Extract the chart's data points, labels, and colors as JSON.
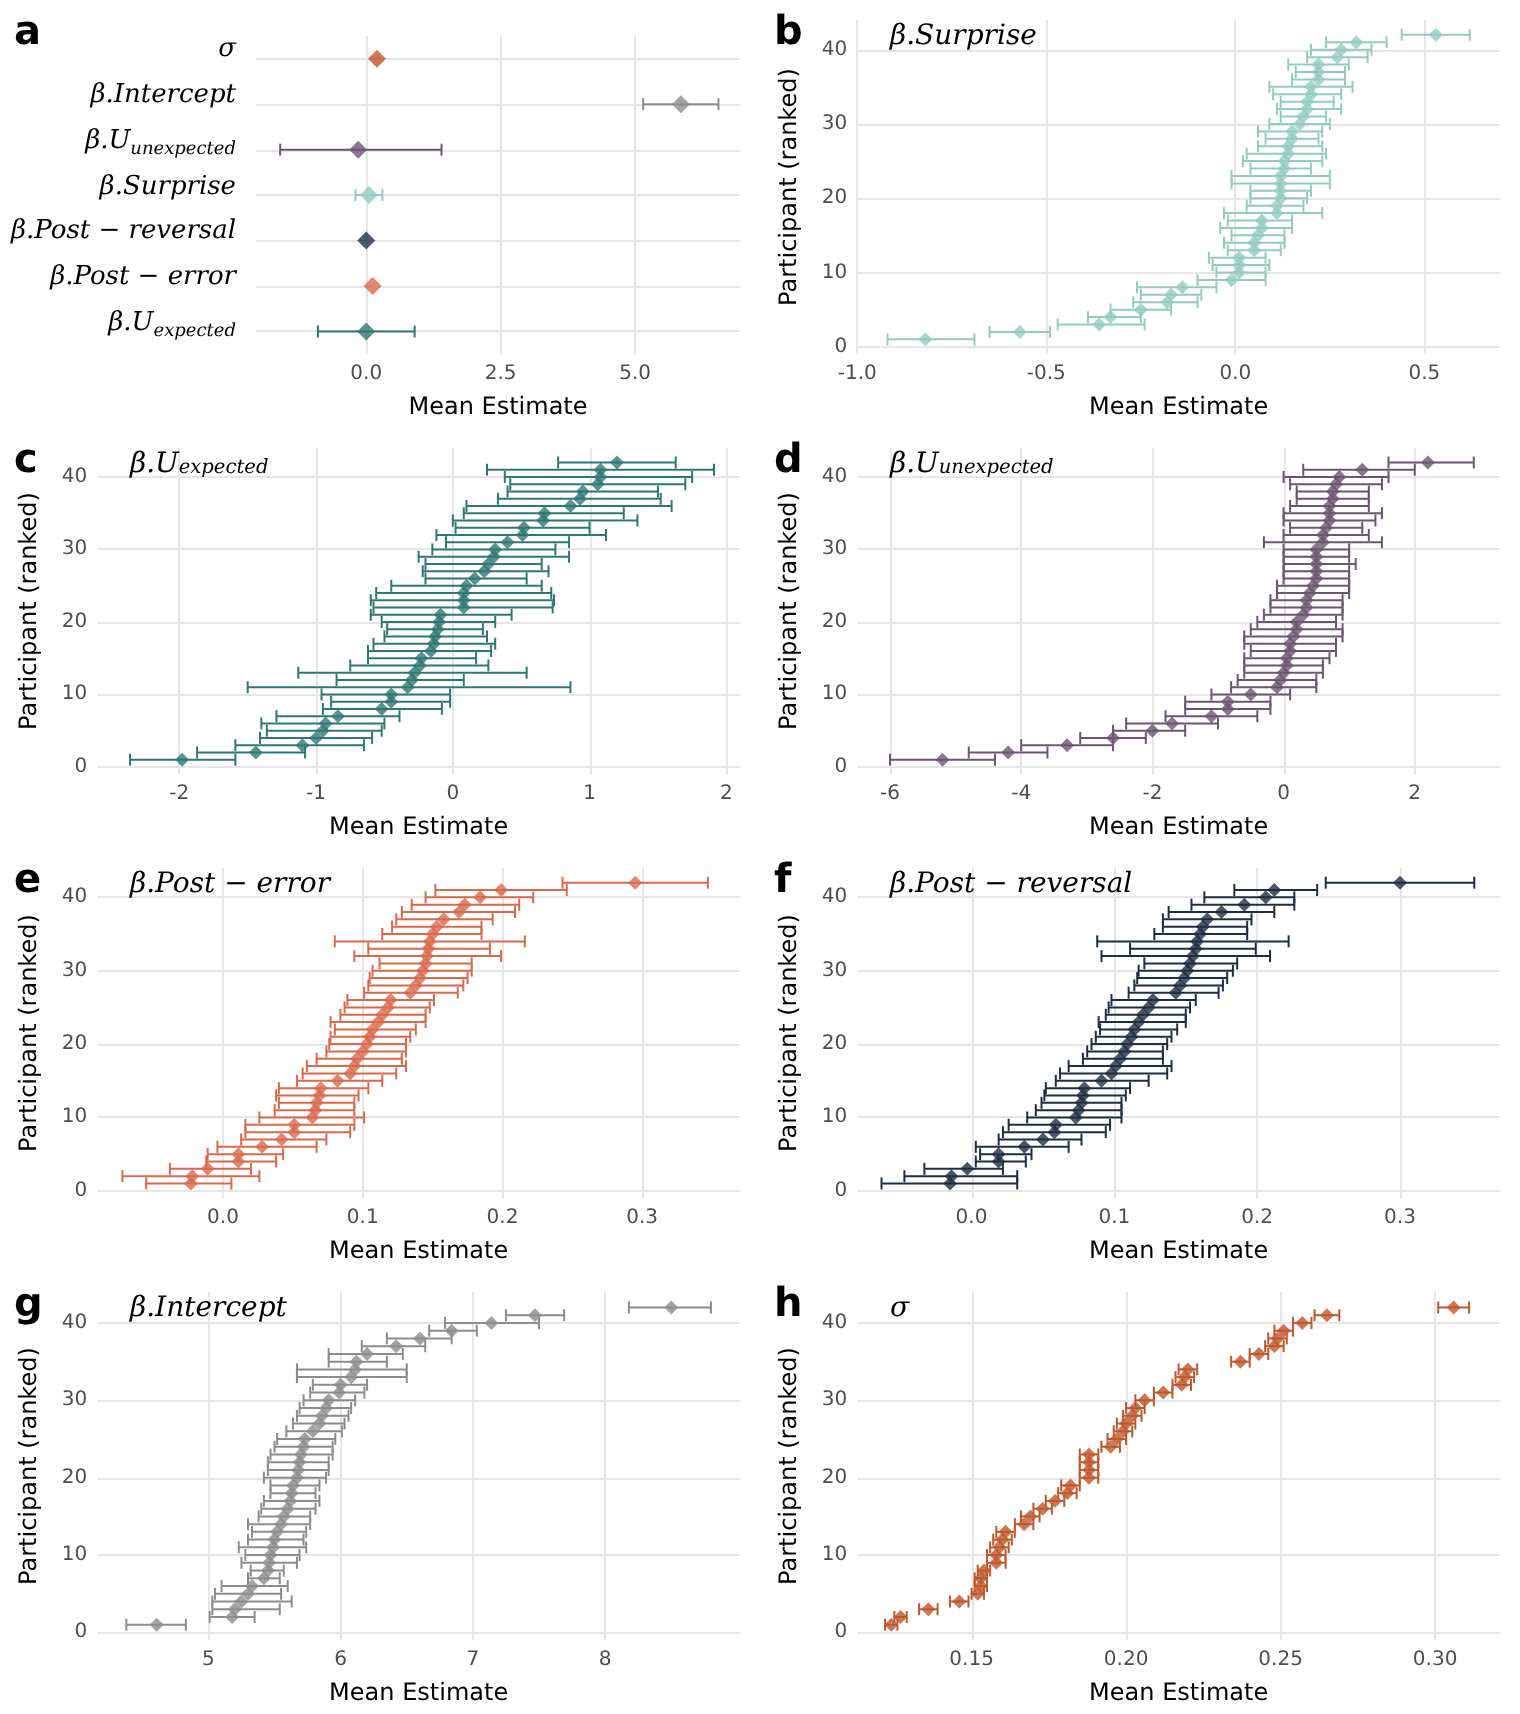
{
  "chart_data": [
    {
      "type": "scatter",
      "title": "a",
      "orientation": "horizontal",
      "xlabel": "Mean Estimate",
      "grid": true,
      "marker": "diamond",
      "categories": [
        "σ",
        "β.Intercept",
        "β.U$_{unexpected}$",
        "β.Surprise",
        "β.Post − reversal",
        "β.Post − error",
        "β.U$_{expected}$"
      ],
      "values": [
        0.2,
        5.85,
        -0.15,
        0.05,
        0.0,
        0.12,
        0.0
      ],
      "errors": [
        null,
        [
          5.15,
          6.55
        ],
        [
          -1.6,
          1.4
        ],
        [
          -0.2,
          0.3
        ],
        null,
        null,
        [
          -0.9,
          0.9
        ]
      ],
      "colors": [
        "#c0562b",
        "#8c8c8c",
        "#6b5570",
        "#93cbbf",
        "#1f2d44",
        "#d9694d",
        "#2f7774"
      ],
      "xlim": [
        -2.05,
        6.95
      ],
      "xticks": [
        {
          "value": 0,
          "label": "0.0"
        },
        {
          "value": 2.5,
          "label": "2.5"
        },
        {
          "value": 5,
          "label": "5.0"
        }
      ]
    },
    {
      "type": "scatter",
      "title": "b",
      "subtitle": "β.Surprise",
      "xlabel": "Mean Estimate",
      "ylabel": "Participant (ranked)",
      "grid": true,
      "marker": "diamond",
      "color": "#93cbbf",
      "x": [
        -0.82,
        -0.57,
        -0.36,
        -0.33,
        -0.25,
        -0.18,
        -0.17,
        -0.14,
        -0.01,
        0.01,
        0.01,
        0.01,
        0.05,
        0.05,
        0.06,
        0.07,
        0.07,
        0.11,
        0.11,
        0.12,
        0.12,
        0.12,
        0.12,
        0.13,
        0.13,
        0.14,
        0.14,
        0.15,
        0.15,
        0.17,
        0.18,
        0.19,
        0.19,
        0.2,
        0.2,
        0.22,
        0.22,
        0.22,
        0.27,
        0.28,
        0.32,
        0.53
      ],
      "values": [
        1,
        2,
        3,
        4,
        5,
        6,
        7,
        8,
        9,
        10,
        11,
        12,
        13,
        14,
        15,
        16,
        17,
        18,
        19,
        20,
        21,
        22,
        23,
        24,
        25,
        26,
        27,
        28,
        29,
        30,
        31,
        32,
        33,
        34,
        35,
        36,
        37,
        38,
        39,
        40,
        41,
        42
      ],
      "xerrors": [
        [
          -0.92,
          -0.69
        ],
        [
          -0.65,
          -0.49
        ],
        [
          -0.47,
          -0.24
        ],
        [
          -0.39,
          -0.25
        ],
        [
          -0.33,
          -0.17
        ],
        [
          -0.27,
          -0.1
        ],
        [
          -0.25,
          -0.09
        ],
        [
          -0.26,
          -0.05
        ],
        [
          -0.1,
          0.08
        ],
        [
          -0.05,
          0.08
        ],
        [
          -0.06,
          0.09
        ],
        [
          -0.07,
          0.08
        ],
        [
          -0.02,
          0.12
        ],
        [
          -0.03,
          0.13
        ],
        [
          -0.01,
          0.13
        ],
        [
          -0.04,
          0.15
        ],
        [
          -0.02,
          0.15
        ],
        [
          -0.03,
          0.23
        ],
        [
          0.03,
          0.18
        ],
        [
          0.04,
          0.19
        ],
        [
          0.04,
          0.2
        ],
        [
          -0.01,
          0.25
        ],
        [
          -0.01,
          0.25
        ],
        [
          0.04,
          0.2
        ],
        [
          0.02,
          0.23
        ],
        [
          0.03,
          0.24
        ],
        [
          0.06,
          0.23
        ],
        [
          0.08,
          0.22
        ],
        [
          0.06,
          0.23
        ],
        [
          0.09,
          0.25
        ],
        [
          0.12,
          0.24
        ],
        [
          0.11,
          0.28
        ],
        [
          0.12,
          0.26
        ],
        [
          0.1,
          0.28
        ],
        [
          0.09,
          0.31
        ],
        [
          0.15,
          0.29
        ],
        [
          0.16,
          0.29
        ],
        [
          0.14,
          0.3
        ],
        [
          0.19,
          0.35
        ],
        [
          0.2,
          0.36
        ],
        [
          0.24,
          0.4
        ],
        [
          0.44,
          0.62
        ]
      ],
      "xlim": [
        -1.0,
        0.7
      ],
      "xticks": [
        {
          "value": -1,
          "label": "-1.0"
        },
        {
          "value": -0.5,
          "label": "-0.5"
        },
        {
          "value": 0,
          "label": "0.0"
        },
        {
          "value": 0.5,
          "label": "0.5"
        }
      ],
      "ylim": [
        -1,
        44
      ],
      "yticks": [
        0,
        10,
        20,
        30,
        40
      ]
    },
    {
      "type": "scatter",
      "title": "c",
      "subtitle": "β.U$_{expected}$",
      "xlabel": "Mean Estimate",
      "ylabel": "Participant (ranked)",
      "grid": true,
      "marker": "diamond",
      "color": "#2f7774",
      "x": [
        -1.98,
        -1.44,
        -1.1,
        -1.0,
        -0.95,
        -0.93,
        -0.84,
        -0.52,
        -0.45,
        -0.45,
        -0.33,
        -0.3,
        -0.28,
        -0.24,
        -0.23,
        -0.16,
        -0.14,
        -0.13,
        -0.11,
        -0.1,
        -0.09,
        0.08,
        0.08,
        0.08,
        0.1,
        0.16,
        0.23,
        0.26,
        0.3,
        0.31,
        0.4,
        0.51,
        0.52,
        0.66,
        0.67,
        0.86,
        0.93,
        0.95,
        1.06,
        1.08,
        1.08,
        1.2
      ],
      "values": [
        1,
        2,
        3,
        4,
        5,
        6,
        7,
        8,
        9,
        10,
        11,
        12,
        13,
        14,
        15,
        16,
        17,
        18,
        19,
        20,
        21,
        22,
        23,
        24,
        25,
        26,
        27,
        28,
        29,
        30,
        31,
        32,
        33,
        34,
        35,
        36,
        37,
        38,
        39,
        40,
        41,
        42
      ],
      "xerrors": [
        [
          -2.36,
          -1.59
        ],
        [
          -1.87,
          -1.08
        ],
        [
          -1.59,
          -0.65
        ],
        [
          -1.41,
          -0.59
        ],
        [
          -1.36,
          -0.52
        ],
        [
          -1.4,
          -0.5
        ],
        [
          -1.29,
          -0.39
        ],
        [
          -0.95,
          -0.08
        ],
        [
          -0.89,
          -0.02
        ],
        [
          -0.96,
          -0.02
        ],
        [
          -1.5,
          0.86
        ],
        [
          -0.85,
          0.08
        ],
        [
          -1.13,
          0.54
        ],
        [
          -0.75,
          0.26
        ],
        [
          -0.62,
          0.17
        ],
        [
          -0.62,
          0.28
        ],
        [
          -0.58,
          0.31
        ],
        [
          -0.5,
          0.25
        ],
        [
          -0.48,
          0.22
        ],
        [
          -0.52,
          0.31
        ],
        [
          -0.6,
          0.43
        ],
        [
          -0.58,
          0.73
        ],
        [
          -0.6,
          0.74
        ],
        [
          -0.56,
          0.72
        ],
        [
          -0.45,
          0.65
        ],
        [
          -0.2,
          0.54
        ],
        [
          -0.22,
          0.7
        ],
        [
          -0.2,
          0.65
        ],
        [
          -0.25,
          0.85
        ],
        [
          -0.15,
          0.75
        ],
        [
          -0.05,
          0.85
        ],
        [
          -0.12,
          1.12
        ],
        [
          0.02,
          1.0
        ],
        [
          0.0,
          1.35
        ],
        [
          0.08,
          1.25
        ],
        [
          0.1,
          1.6
        ],
        [
          0.33,
          1.52
        ],
        [
          0.4,
          1.5
        ],
        [
          0.42,
          1.7
        ],
        [
          0.38,
          1.75
        ],
        [
          0.25,
          1.91
        ],
        [
          0.77,
          1.63
        ]
      ],
      "xlim": [
        -2.6,
        2.1
      ],
      "xticks": [
        -2,
        -1,
        0,
        1,
        2
      ],
      "ylim": [
        -1,
        44
      ],
      "yticks": [
        0,
        10,
        20,
        30,
        40
      ]
    },
    {
      "type": "scatter",
      "title": "d",
      "subtitle": "β.U$_{unexpected}$",
      "xlabel": "Mean Estimate",
      "ylabel": "Participant (ranked)",
      "grid": true,
      "marker": "diamond",
      "color": "#6b5570",
      "x": [
        -5.2,
        -4.2,
        -3.3,
        -2.6,
        -2.0,
        -1.7,
        -1.1,
        -0.85,
        -0.85,
        -0.5,
        -0.1,
        -0.05,
        0.0,
        0.05,
        0.05,
        0.1,
        0.1,
        0.15,
        0.2,
        0.2,
        0.3,
        0.35,
        0.35,
        0.4,
        0.45,
        0.5,
        0.5,
        0.5,
        0.5,
        0.5,
        0.6,
        0.6,
        0.65,
        0.7,
        0.7,
        0.7,
        0.75,
        0.75,
        0.8,
        0.85,
        1.2,
        2.2
      ],
      "values": [
        1,
        2,
        3,
        4,
        5,
        6,
        7,
        8,
        9,
        10,
        11,
        12,
        13,
        14,
        15,
        16,
        17,
        18,
        19,
        20,
        21,
        22,
        23,
        24,
        25,
        26,
        27,
        28,
        29,
        30,
        31,
        32,
        33,
        34,
        35,
        36,
        37,
        38,
        39,
        40,
        41,
        42
      ],
      "xerrors": [
        [
          -6.0,
          -4.4
        ],
        [
          -4.8,
          -3.6
        ],
        [
          -4.0,
          -2.6
        ],
        [
          -3.1,
          -2.1
        ],
        [
          -2.6,
          -1.5
        ],
        [
          -2.4,
          -1.0
        ],
        [
          -1.8,
          -0.4
        ],
        [
          -1.5,
          -0.2
        ],
        [
          -1.5,
          -0.2
        ],
        [
          -1.1,
          0.1
        ],
        [
          -0.8,
          0.5
        ],
        [
          -0.7,
          0.5
        ],
        [
          -0.6,
          0.6
        ],
        [
          -0.6,
          0.6
        ],
        [
          -0.6,
          0.7
        ],
        [
          -0.5,
          0.8
        ],
        [
          -0.6,
          0.8
        ],
        [
          -0.6,
          0.9
        ],
        [
          -0.5,
          0.9
        ],
        [
          -0.4,
          0.8
        ],
        [
          -0.3,
          0.9
        ],
        [
          -0.2,
          0.9
        ],
        [
          -0.2,
          0.9
        ],
        [
          -0.1,
          1.0
        ],
        [
          -0.1,
          1.0
        ],
        [
          0.0,
          1.0
        ],
        [
          0.0,
          1.0
        ],
        [
          0.0,
          1.1
        ],
        [
          0.0,
          1.0
        ],
        [
          0.0,
          1.0
        ],
        [
          -0.3,
          1.5
        ],
        [
          0.0,
          1.3
        ],
        [
          0.1,
          1.2
        ],
        [
          0.0,
          1.4
        ],
        [
          0.0,
          1.5
        ],
        [
          0.1,
          1.3
        ],
        [
          0.2,
          1.3
        ],
        [
          0.2,
          1.3
        ],
        [
          0.1,
          1.5
        ],
        [
          0.0,
          1.6
        ],
        [
          0.3,
          2.0
        ],
        [
          1.6,
          2.9
        ]
      ],
      "xlim": [
        -6.5,
        3.3
      ],
      "xticks": [
        -6,
        -4,
        -2,
        0,
        2
      ],
      "ylim": [
        -1,
        44
      ],
      "yticks": [
        0,
        10,
        20,
        30,
        40
      ]
    },
    {
      "type": "scatter",
      "title": "e",
      "subtitle": "β.Post − error",
      "xlabel": "Mean Estimate",
      "ylabel": "Participant (ranked)",
      "grid": true,
      "marker": "diamond",
      "color": "#d9694d",
      "x": [
        -0.023,
        -0.022,
        -0.011,
        0.011,
        0.011,
        0.028,
        0.042,
        0.051,
        0.051,
        0.064,
        0.066,
        0.067,
        0.069,
        0.07,
        0.082,
        0.091,
        0.094,
        0.096,
        0.1,
        0.103,
        0.105,
        0.107,
        0.111,
        0.114,
        0.118,
        0.12,
        0.134,
        0.138,
        0.141,
        0.143,
        0.145,
        0.146,
        0.147,
        0.148,
        0.15,
        0.153,
        0.158,
        0.169,
        0.173,
        0.184,
        0.199,
        0.295
      ],
      "values": [
        1,
        2,
        3,
        4,
        5,
        6,
        7,
        8,
        9,
        10,
        11,
        12,
        13,
        14,
        15,
        16,
        17,
        18,
        19,
        20,
        21,
        22,
        23,
        24,
        25,
        26,
        27,
        28,
        29,
        30,
        31,
        32,
        33,
        34,
        35,
        36,
        37,
        38,
        39,
        40,
        41,
        42
      ],
      "xerrors": [
        [
          -0.055,
          0.006
        ],
        [
          -0.072,
          0.026
        ],
        [
          -0.038,
          0.02
        ],
        [
          -0.012,
          0.038
        ],
        [
          -0.011,
          0.043
        ],
        [
          -0.004,
          0.067
        ],
        [
          0.013,
          0.074
        ],
        [
          0.016,
          0.091
        ],
        [
          0.016,
          0.094
        ],
        [
          0.026,
          0.101
        ],
        [
          0.037,
          0.094
        ],
        [
          0.04,
          0.094
        ],
        [
          0.038,
          0.097
        ],
        [
          0.04,
          0.104
        ],
        [
          0.053,
          0.114
        ],
        [
          0.057,
          0.124
        ],
        [
          0.06,
          0.131
        ],
        [
          0.067,
          0.128
        ],
        [
          0.074,
          0.131
        ],
        [
          0.076,
          0.131
        ],
        [
          0.077,
          0.134
        ],
        [
          0.08,
          0.138
        ],
        [
          0.077,
          0.145
        ],
        [
          0.084,
          0.145
        ],
        [
          0.087,
          0.148
        ],
        [
          0.089,
          0.151
        ],
        [
          0.101,
          0.168
        ],
        [
          0.104,
          0.172
        ],
        [
          0.105,
          0.175
        ],
        [
          0.107,
          0.178
        ],
        [
          0.112,
          0.178
        ],
        [
          0.094,
          0.199
        ],
        [
          0.104,
          0.191
        ],
        [
          0.08,
          0.216
        ],
        [
          0.114,
          0.185
        ],
        [
          0.121,
          0.185
        ],
        [
          0.124,
          0.193
        ],
        [
          0.128,
          0.209
        ],
        [
          0.135,
          0.212
        ],
        [
          0.145,
          0.222
        ],
        [
          0.152,
          0.246
        ],
        [
          0.243,
          0.347
        ]
      ],
      "xlim": [
        -0.09,
        0.37
      ],
      "xticks": [
        {
          "value": 0,
          "label": "0.0"
        },
        {
          "value": 0.1,
          "label": "0.1"
        },
        {
          "value": 0.2,
          "label": "0.2"
        },
        {
          "value": 0.3,
          "label": "0.3"
        }
      ],
      "ylim": [
        -1,
        44
      ],
      "yticks": [
        0,
        10,
        20,
        30,
        40
      ]
    },
    {
      "type": "scatter",
      "title": "f",
      "subtitle": "β.Post − reversal",
      "xlabel": "Mean Estimate",
      "ylabel": "Participant (ranked)",
      "grid": true,
      "marker": "diamond",
      "color": "#1f2d44",
      "x": [
        -0.015,
        -0.014,
        -0.003,
        0.019,
        0.019,
        0.037,
        0.05,
        0.058,
        0.059,
        0.073,
        0.075,
        0.077,
        0.078,
        0.079,
        0.091,
        0.098,
        0.101,
        0.104,
        0.107,
        0.109,
        0.112,
        0.114,
        0.117,
        0.12,
        0.124,
        0.127,
        0.143,
        0.146,
        0.149,
        0.151,
        0.153,
        0.155,
        0.157,
        0.158,
        0.16,
        0.162,
        0.165,
        0.175,
        0.191,
        0.206,
        0.212,
        0.3
      ],
      "values": [
        1,
        2,
        3,
        4,
        5,
        6,
        7,
        8,
        9,
        10,
        11,
        12,
        13,
        14,
        15,
        16,
        17,
        18,
        19,
        20,
        21,
        22,
        23,
        24,
        25,
        26,
        27,
        28,
        29,
        30,
        31,
        32,
        33,
        34,
        35,
        36,
        37,
        38,
        39,
        40,
        41,
        42
      ],
      "xerrors": [
        [
          -0.063,
          0.032
        ],
        [
          -0.047,
          0.032
        ],
        [
          -0.033,
          0.022
        ],
        [
          0.003,
          0.038
        ],
        [
          0.006,
          0.042
        ],
        [
          0.003,
          0.068
        ],
        [
          0.019,
          0.077
        ],
        [
          0.022,
          0.094
        ],
        [
          0.026,
          0.097
        ],
        [
          0.039,
          0.105
        ],
        [
          0.045,
          0.105
        ],
        [
          0.049,
          0.105
        ],
        [
          0.051,
          0.108
        ],
        [
          0.052,
          0.111
        ],
        [
          0.059,
          0.124
        ],
        [
          0.062,
          0.137
        ],
        [
          0.068,
          0.14
        ],
        [
          0.078,
          0.134
        ],
        [
          0.081,
          0.134
        ],
        [
          0.084,
          0.137
        ],
        [
          0.087,
          0.14
        ],
        [
          0.09,
          0.144
        ],
        [
          0.089,
          0.15
        ],
        [
          0.094,
          0.15
        ],
        [
          0.096,
          0.153
        ],
        [
          0.098,
          0.157
        ],
        [
          0.11,
          0.173
        ],
        [
          0.114,
          0.176
        ],
        [
          0.116,
          0.179
        ],
        [
          0.117,
          0.183
        ],
        [
          0.121,
          0.186
        ],
        [
          0.091,
          0.209
        ],
        [
          0.111,
          0.199
        ],
        [
          0.088,
          0.222
        ],
        [
          0.128,
          0.193
        ],
        [
          0.134,
          0.193
        ],
        [
          0.134,
          0.196
        ],
        [
          0.138,
          0.212
        ],
        [
          0.154,
          0.226
        ],
        [
          0.163,
          0.226
        ],
        [
          0.184,
          0.242
        ],
        [
          0.248,
          0.352
        ]
      ],
      "xlim": [
        -0.08,
        0.37
      ],
      "xticks": [
        {
          "value": 0,
          "label": "0.0"
        },
        {
          "value": 0.1,
          "label": "0.1"
        },
        {
          "value": 0.2,
          "label": "0.2"
        },
        {
          "value": 0.3,
          "label": "0.3"
        }
      ],
      "ylim": [
        -1,
        44
      ],
      "yticks": [
        0,
        10,
        20,
        30,
        40
      ]
    },
    {
      "type": "scatter",
      "title": "g",
      "subtitle": "β.Intercept",
      "xlabel": "Mean Estimate",
      "ylabel": "Participant (ranked)",
      "grid": true,
      "marker": "diamond",
      "color": "#8c8c8c",
      "x": [
        4.61,
        5.18,
        5.2,
        5.25,
        5.3,
        5.33,
        5.42,
        5.45,
        5.46,
        5.47,
        5.49,
        5.5,
        5.52,
        5.55,
        5.57,
        5.6,
        5.62,
        5.63,
        5.64,
        5.67,
        5.68,
        5.69,
        5.7,
        5.72,
        5.73,
        5.79,
        5.84,
        5.86,
        5.89,
        5.91,
        5.99,
        6.0,
        6.08,
        6.11,
        6.12,
        6.2,
        6.42,
        6.6,
        6.84,
        7.14,
        7.47,
        8.5
      ],
      "values": [
        1,
        2,
        3,
        4,
        5,
        6,
        7,
        8,
        9,
        10,
        11,
        12,
        13,
        14,
        15,
        16,
        17,
        18,
        19,
        20,
        21,
        22,
        23,
        24,
        25,
        26,
        27,
        28,
        29,
        30,
        31,
        32,
        33,
        34,
        35,
        36,
        37,
        38,
        39,
        40,
        41,
        42
      ],
      "xerrors": [
        [
          4.38,
          4.83
        ],
        [
          5.01,
          5.35
        ],
        [
          5.03,
          5.54
        ],
        [
          5.03,
          5.63
        ],
        [
          5.05,
          5.55
        ],
        [
          5.1,
          5.6
        ],
        [
          5.3,
          5.54
        ],
        [
          5.32,
          5.57
        ],
        [
          5.25,
          5.67
        ],
        [
          5.28,
          5.69
        ],
        [
          5.23,
          5.74
        ],
        [
          5.3,
          5.72
        ],
        [
          5.33,
          5.74
        ],
        [
          5.3,
          5.77
        ],
        [
          5.38,
          5.77
        ],
        [
          5.4,
          5.81
        ],
        [
          5.42,
          5.84
        ],
        [
          5.47,
          5.81
        ],
        [
          5.47,
          5.84
        ],
        [
          5.42,
          5.89
        ],
        [
          5.45,
          5.91
        ],
        [
          5.45,
          5.91
        ],
        [
          5.47,
          5.94
        ],
        [
          5.5,
          5.94
        ],
        [
          5.52,
          5.96
        ],
        [
          5.59,
          6.01
        ],
        [
          5.64,
          6.03
        ],
        [
          5.67,
          6.06
        ],
        [
          5.69,
          6.08
        ],
        [
          5.72,
          6.11
        ],
        [
          5.77,
          6.18
        ],
        [
          5.79,
          6.2
        ],
        [
          5.67,
          6.5
        ],
        [
          5.67,
          6.5
        ],
        [
          5.91,
          6.35
        ],
        [
          5.91,
          6.47
        ],
        [
          6.16,
          6.64
        ],
        [
          6.35,
          6.84
        ],
        [
          6.67,
          7.03
        ],
        [
          6.79,
          7.5
        ],
        [
          7.25,
          7.69
        ],
        [
          8.18,
          8.8
        ]
      ],
      "xlim": [
        4.16,
        9.02
      ],
      "xticks": [
        5,
        6,
        7,
        8
      ],
      "ylim": [
        -1,
        44
      ],
      "yticks": [
        0,
        10,
        20,
        30,
        40
      ]
    },
    {
      "type": "scatter",
      "title": "h",
      "subtitle": "σ",
      "xlabel": "Mean Estimate",
      "ylabel": "Participant (ranked)",
      "grid": true,
      "marker": "diamond",
      "color": "#c0562b",
      "x": [
        0.124,
        0.127,
        0.136,
        0.146,
        0.152,
        0.153,
        0.153,
        0.154,
        0.158,
        0.158,
        0.159,
        0.16,
        0.161,
        0.167,
        0.169,
        0.173,
        0.177,
        0.181,
        0.182,
        0.188,
        0.188,
        0.188,
        0.188,
        0.195,
        0.197,
        0.199,
        0.2,
        0.202,
        0.203,
        0.206,
        0.212,
        0.218,
        0.219,
        0.22,
        0.237,
        0.243,
        0.248,
        0.249,
        0.251,
        0.257,
        0.265,
        0.306
      ],
      "values": [
        1,
        2,
        3,
        4,
        5,
        6,
        7,
        8,
        9,
        10,
        11,
        12,
        13,
        14,
        15,
        16,
        17,
        18,
        19,
        20,
        21,
        22,
        23,
        24,
        25,
        26,
        27,
        28,
        29,
        30,
        31,
        32,
        33,
        34,
        35,
        36,
        37,
        38,
        39,
        40,
        41,
        42
      ],
      "xerrors": [
        0.002,
        0.002,
        0.003,
        0.003,
        0.002,
        0.002,
        0.002,
        0.002,
        0.003,
        0.003,
        0.003,
        0.003,
        0.003,
        0.003,
        0.003,
        0.003,
        0.003,
        0.003,
        0.003,
        0.003,
        0.003,
        0.003,
        0.003,
        0.003,
        0.003,
        0.003,
        0.003,
        0.003,
        0.003,
        0.003,
        0.003,
        0.003,
        0.003,
        0.003,
        0.003,
        0.003,
        0.003,
        0.003,
        0.003,
        0.003,
        0.004,
        0.005
      ],
      "xlim": [
        0.113,
        0.321
      ],
      "xticks": [
        {
          "value": 0.15,
          "label": "0.15"
        },
        {
          "value": 0.2,
          "label": "0.20"
        },
        {
          "value": 0.25,
          "label": "0.25"
        },
        {
          "value": 0.3,
          "label": "0.30"
        }
      ],
      "ylim": [
        -1,
        44
      ],
      "yticks": [
        0,
        10,
        20,
        30,
        40
      ]
    }
  ]
}
